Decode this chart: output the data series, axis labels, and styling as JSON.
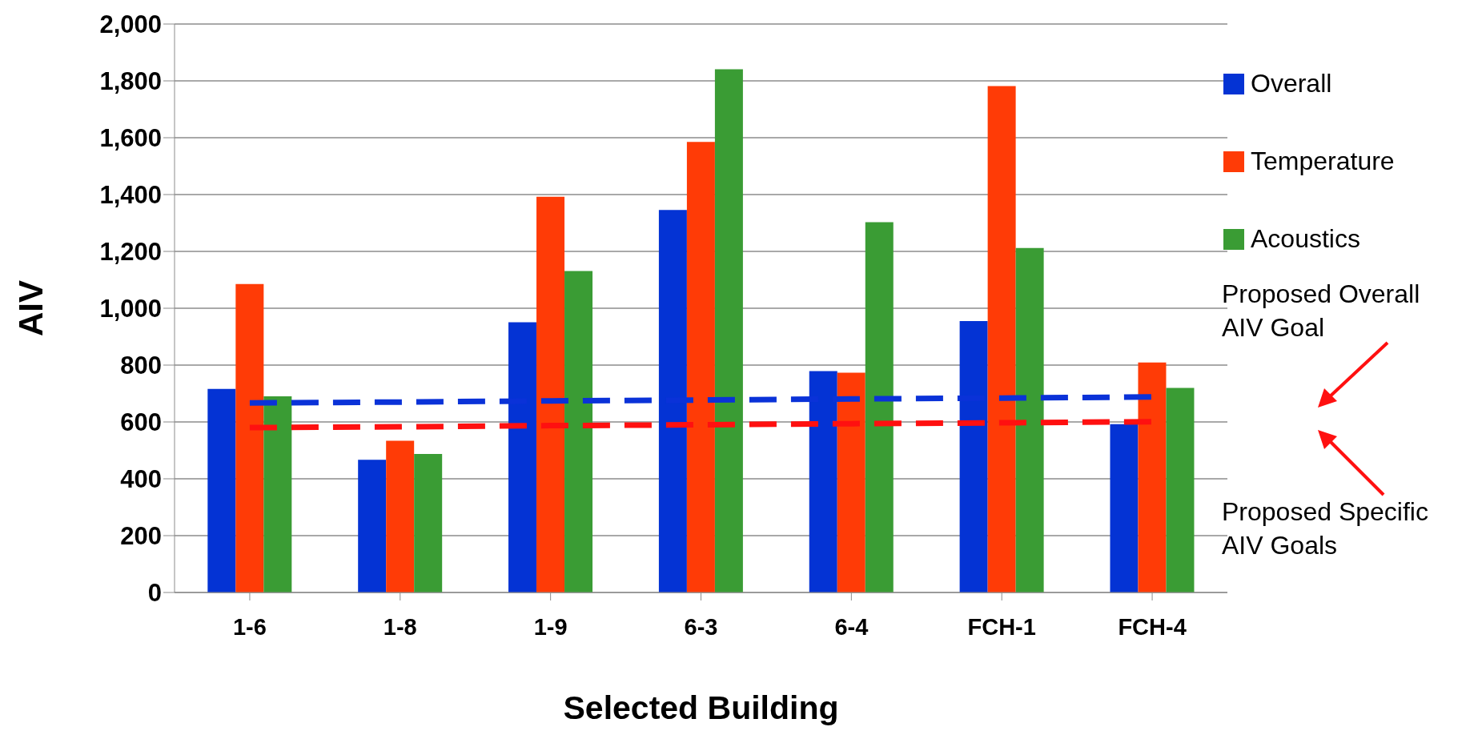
{
  "chart_data": {
    "type": "bar",
    "xlabel": "Selected Building",
    "ylabel": "AIV",
    "categories": [
      "1-6",
      "1-8",
      "1-9",
      "6-3",
      "6-4",
      "FCH-1",
      "FCH-4"
    ],
    "series": [
      {
        "name": "Overall",
        "color": "#0433d4",
        "values": [
          716,
          467,
          951,
          1346,
          779,
          955,
          592
        ]
      },
      {
        "name": "Temperature",
        "color": "#ff3b06",
        "values": [
          1085,
          534,
          1392,
          1585,
          773,
          1782,
          809
        ]
      },
      {
        "name": "Acoustics",
        "color": "#3a9c34",
        "values": [
          690,
          487,
          1131,
          1841,
          1303,
          1212,
          720
        ]
      },
      {
        "type": "line",
        "color": "#0a32d8",
        "line_style": "dashed",
        "marker": "none",
        "values": [
          667,
          670,
          674,
          677,
          681,
          684,
          688
        ]
      },
      {
        "type": "line",
        "color": "#ff1010",
        "line_style": "dashed",
        "marker": "none",
        "values": [
          580,
          583,
          587,
          590,
          594,
          597,
          601
        ]
      }
    ],
    "ylim": [
      0,
      2000
    ],
    "yticks": [
      {
        "value": 0,
        "label": "0"
      },
      {
        "value": 200,
        "label": "200"
      },
      {
        "value": 400,
        "label": "400"
      },
      {
        "value": 600,
        "label": "600"
      },
      {
        "value": 800,
        "label": "800"
      },
      {
        "value": 1000,
        "label": "1,000"
      },
      {
        "value": 1200,
        "label": "1,200"
      },
      {
        "value": 1400,
        "label": "1,400"
      },
      {
        "value": 1600,
        "label": "1,600"
      },
      {
        "value": 1800,
        "label": "1,800"
      },
      {
        "value": 2000,
        "label": "2,000"
      }
    ],
    "grid": "y",
    "legend": "top right",
    "annotations": [
      "Proposed Overall AIV Goal",
      "Proposed Specific AIV Goals"
    ]
  }
}
